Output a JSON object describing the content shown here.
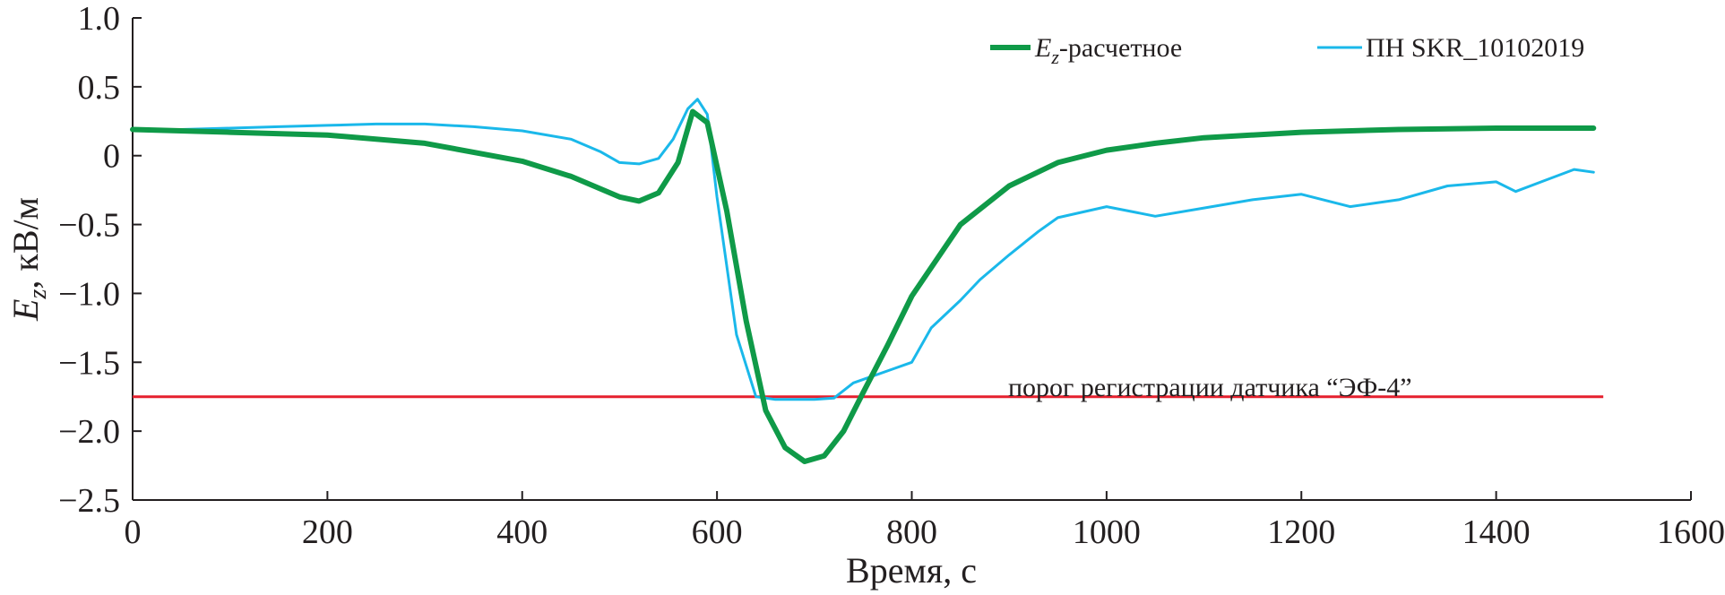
{
  "chart_data": {
    "type": "line",
    "title": "",
    "xlabel": "Время, с",
    "ylabel_main": "E",
    "ylabel_sub": "z",
    "ylabel_rest": ", кВ/м",
    "xlim": [
      0,
      1600
    ],
    "ylim": [
      -2.5,
      1.0
    ],
    "xticks": [
      0,
      200,
      400,
      600,
      800,
      1000,
      1200,
      1400,
      1600
    ],
    "xtick_labels": [
      "0",
      "200",
      "400",
      "600",
      "800",
      "1000",
      "1200",
      "1400",
      "1600"
    ],
    "yticks": [
      1.0,
      0.5,
      0,
      -0.5,
      -1.0,
      -1.5,
      -2.0,
      -2.5
    ],
    "ytick_labels": [
      "1.0",
      "0.5",
      "0",
      "−0.5",
      "−1.0",
      "−1.5",
      "−2.0",
      "−2.5"
    ],
    "grid": false,
    "legend_position": "top-right",
    "series": [
      {
        "name_main": "E",
        "name_sub": "z",
        "name_rest": "-расчетное",
        "color": "#0f9a48",
        "x": [
          0,
          100,
          200,
          300,
          400,
          450,
          500,
          520,
          540,
          560,
          575,
          590,
          610,
          630,
          650,
          670,
          690,
          710,
          730,
          750,
          775,
          800,
          850,
          900,
          950,
          1000,
          1050,
          1100,
          1200,
          1300,
          1400,
          1500
        ],
        "y": [
          0.19,
          0.17,
          0.15,
          0.09,
          -0.04,
          -0.15,
          -0.3,
          -0.33,
          -0.27,
          -0.05,
          0.32,
          0.24,
          -0.4,
          -1.2,
          -1.85,
          -2.12,
          -2.22,
          -2.18,
          -2.0,
          -1.72,
          -1.38,
          -1.02,
          -0.5,
          -0.22,
          -0.05,
          0.04,
          0.09,
          0.13,
          0.17,
          0.19,
          0.2,
          0.2
        ]
      },
      {
        "name": "ПН SKR_10102019",
        "color": "#1ab8ea",
        "x": [
          0,
          50,
          100,
          150,
          200,
          250,
          300,
          350,
          400,
          450,
          480,
          500,
          520,
          540,
          555,
          570,
          580,
          590,
          600,
          620,
          640,
          660,
          680,
          700,
          720,
          740,
          760,
          780,
          800,
          820,
          850,
          870,
          900,
          930,
          950,
          1000,
          1050,
          1100,
          1150,
          1200,
          1250,
          1300,
          1350,
          1400,
          1420,
          1450,
          1480,
          1500
        ],
        "y": [
          0.19,
          0.19,
          0.2,
          0.21,
          0.22,
          0.23,
          0.23,
          0.21,
          0.18,
          0.12,
          0.03,
          -0.05,
          -0.06,
          -0.02,
          0.12,
          0.34,
          0.41,
          0.3,
          -0.3,
          -1.3,
          -1.75,
          -1.77,
          -1.77,
          -1.77,
          -1.76,
          -1.65,
          -1.6,
          -1.55,
          -1.5,
          -1.25,
          -1.05,
          -0.9,
          -0.72,
          -0.55,
          -0.45,
          -0.37,
          -0.44,
          -0.38,
          -0.32,
          -0.28,
          -0.37,
          -0.32,
          -0.22,
          -0.19,
          -0.26,
          -0.18,
          -0.1,
          -0.12
        ]
      }
    ],
    "threshold": {
      "y": -1.75,
      "x_range": [
        0,
        1510
      ],
      "color": "#e5202e",
      "label": "порог регистрации датчика “ЭФ-4”"
    }
  }
}
